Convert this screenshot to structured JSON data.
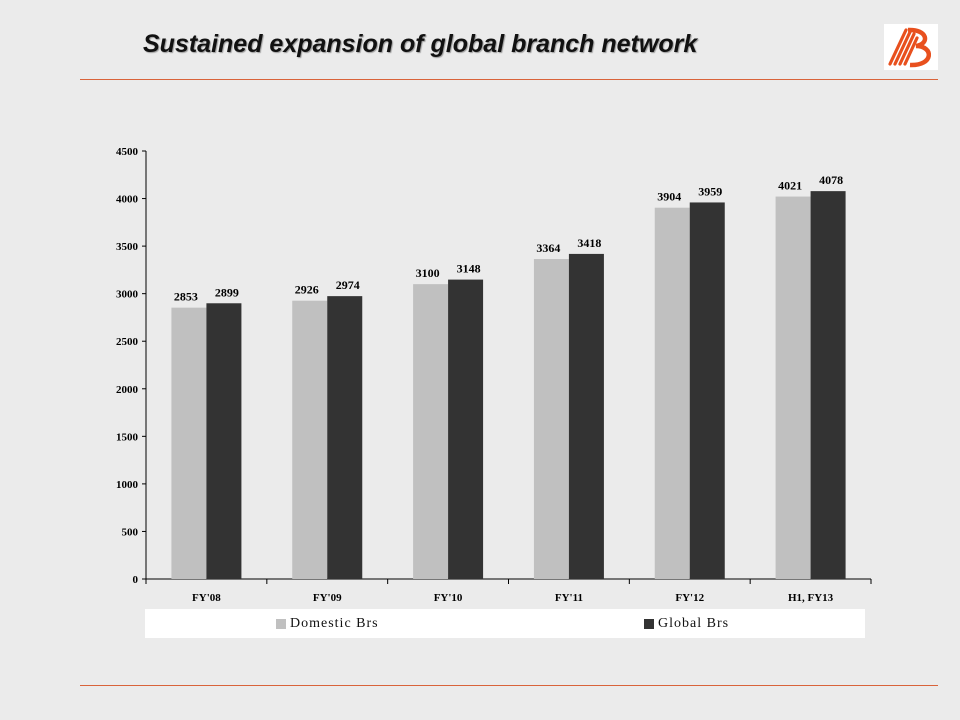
{
  "slide": {
    "title": "Sustained expansion of global branch network"
  },
  "logo": {
    "icon": "bank-of-baroda-logo-icon",
    "color": "#e8501e"
  },
  "colors": {
    "rule": "#d9633a",
    "domestic": "#c0c0c0",
    "global": "#333333"
  },
  "chart_data": {
    "type": "bar",
    "categories": [
      "FY'08",
      "FY'09",
      "FY'10",
      "FY'11",
      "FY'12",
      "H1, FY13"
    ],
    "series": [
      {
        "name": "Domestic Brs",
        "values": [
          2853,
          2926,
          3100,
          3364,
          3904,
          4021
        ]
      },
      {
        "name": "Global Brs",
        "values": [
          2899,
          2974,
          3148,
          3418,
          3959,
          4078
        ]
      }
    ],
    "y_ticks": [
      0,
      500,
      1000,
      1500,
      2000,
      2500,
      3000,
      3500,
      4000,
      4500
    ],
    "ylim": [
      0,
      4500
    ],
    "grid": false,
    "legend_position": "bottom"
  }
}
